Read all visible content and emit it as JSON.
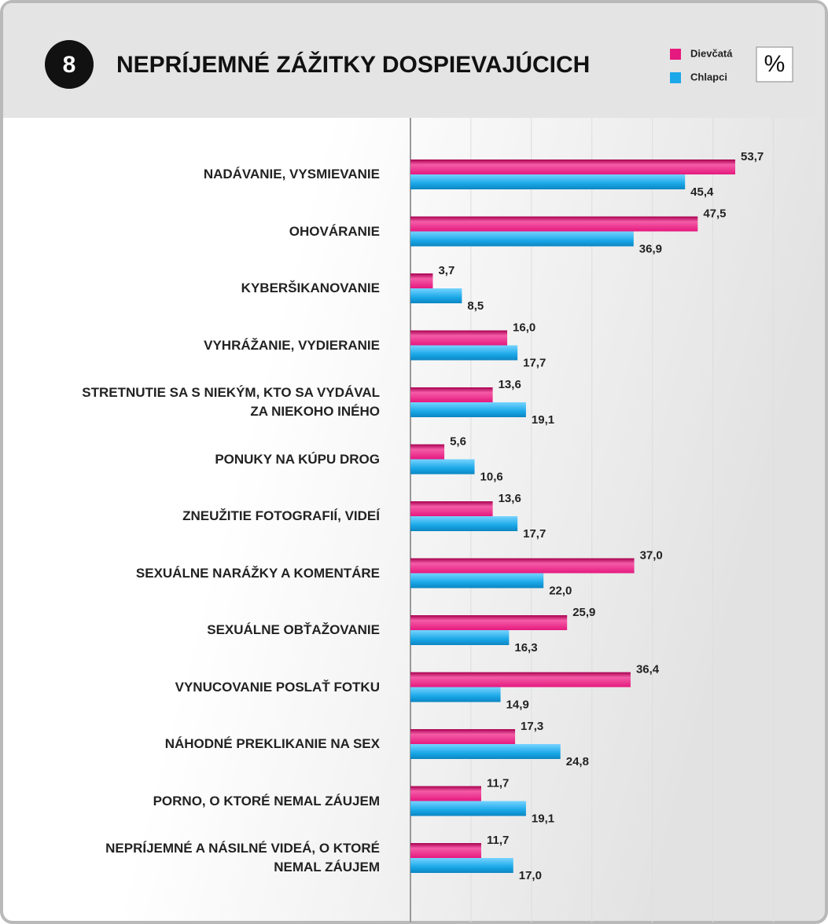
{
  "badge": "8",
  "unit": "%",
  "chart_data": {
    "type": "hbar",
    "title": "NEPRÍJEMNÉ ZÁŽITKY DOSPIEVAJÚCICH",
    "categories": [
      "NADÁVANIE, VYSMIEVANIE",
      "OHOVÁRANIE",
      "KYBERŠIKANOVANIE",
      "VYHRÁŽANIE, VYDIERANIE",
      "STRETNUTIE SA S NIEKÝM, KTO SA VYDÁVAL\nZA NIEKOHO INÉHO",
      "PONUKY NA KÚPU DROG",
      "ZNEUŽITIE FOTOGRAFIÍ, VIDEÍ",
      "SEXUÁLNE NARÁŽKY A KOMENTÁRE",
      "SEXUÁLNE OBŤAŽOVANIE",
      "VYNUCOVANIE POSLAŤ FOTKU",
      "NÁHODNÉ PREKLIKANIE NA SEX",
      "PORNO, O KTORÉ NEMAL ZÁUJEM",
      "NEPRÍJEMNÉ A NÁSILNÉ VIDEÁ, O KTORÉ\nNEMAL ZÁUJEM"
    ],
    "series": [
      {
        "name": "Dievčatá",
        "color": "#e5197e",
        "values": [
          53.7,
          47.5,
          3.7,
          16.0,
          13.6,
          5.6,
          13.6,
          37.0,
          25.9,
          36.4,
          17.3,
          11.7,
          11.7
        ],
        "value_labels": [
          "53,7",
          "47,5",
          "3,7",
          "16,0",
          "13,6",
          "5,6",
          "13,6",
          "37,0",
          "25,9",
          "36,4",
          "17,3",
          "11,7",
          "11,7"
        ]
      },
      {
        "name": "Chlapci",
        "color": "#1ba8e8",
        "values": [
          45.4,
          36.9,
          8.5,
          17.7,
          19.1,
          10.6,
          17.7,
          22.0,
          16.3,
          14.9,
          24.8,
          19.1,
          17.0
        ],
        "value_labels": [
          "45,4",
          "36,9",
          "8,5",
          "17,7",
          "19,1",
          "10,6",
          "17,7",
          "22,0",
          "16,3",
          "14,9",
          "24,8",
          "19,1",
          "17,0"
        ]
      }
    ],
    "xlim": [
      0,
      68
    ],
    "xticks": [
      0,
      10,
      20,
      30,
      40,
      50,
      60
    ],
    "grid": true
  }
}
